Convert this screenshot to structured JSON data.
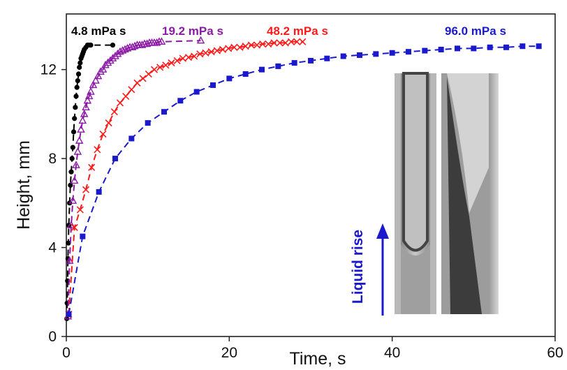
{
  "chart_data": {
    "type": "scatter",
    "title": "",
    "xlabel": "Time, s",
    "ylabel": "Height, mm",
    "xlim": [
      0,
      60
    ],
    "ylim": [
      0,
      14.5
    ],
    "xticks": [
      "0",
      "20",
      "40",
      "60"
    ],
    "yticks": [
      "0",
      "4",
      "8",
      "12"
    ],
    "grid": false,
    "legend": "none",
    "series": [
      {
        "name": "4.8 mPa s",
        "color": "#000000",
        "marker": "circle",
        "x": [
          0.05,
          0.1,
          0.15,
          0.2,
          0.25,
          0.3,
          0.4,
          0.5,
          0.6,
          0.7,
          0.8,
          0.9,
          1.0,
          1.1,
          1.2,
          1.3,
          1.4,
          1.5,
          1.6,
          1.7,
          1.8,
          1.9,
          2.0,
          2.1,
          2.2,
          2.4,
          2.6,
          2.8,
          3.0,
          5.7
        ],
        "y": [
          0.8,
          1.5,
          2.5,
          3.5,
          4.2,
          5.0,
          6.0,
          6.8,
          7.4,
          8.0,
          8.5,
          9.2,
          9.8,
          10.3,
          10.8,
          11.2,
          11.5,
          11.8,
          12.1,
          12.3,
          12.5,
          12.6,
          12.7,
          12.8,
          12.9,
          13.0,
          13.1,
          13.1,
          13.1,
          13.1
        ]
      },
      {
        "name": "19.2 mPa s",
        "color": "#8B1AA6",
        "marker": "triangle",
        "x": [
          0.2,
          0.4,
          0.6,
          0.8,
          1.0,
          1.2,
          1.4,
          1.6,
          1.8,
          2.0,
          2.2,
          2.4,
          2.6,
          2.8,
          3.0,
          3.3,
          3.6,
          3.9,
          4.2,
          4.5,
          4.8,
          5.1,
          5.4,
          5.7,
          6.0,
          6.3,
          6.6,
          6.9,
          7.2,
          7.5,
          7.8,
          8.1,
          8.4,
          8.7,
          9.0,
          9.3,
          9.6,
          9.9,
          10.2,
          10.5,
          10.8,
          11.1,
          11.4,
          11.7,
          16.5
        ],
        "y": [
          0.9,
          3.4,
          5.0,
          6.1,
          7.0,
          7.7,
          8.3,
          8.8,
          9.3,
          9.7,
          10.0,
          10.3,
          10.6,
          10.8,
          11.0,
          11.3,
          11.5,
          11.7,
          11.9,
          12.0,
          12.2,
          12.3,
          12.4,
          12.5,
          12.6,
          12.7,
          12.8,
          12.85,
          12.9,
          12.95,
          13.0,
          13.0,
          13.05,
          13.1,
          13.1,
          13.1,
          13.15,
          13.15,
          13.2,
          13.2,
          13.2,
          13.2,
          13.25,
          13.25,
          13.3
        ]
      },
      {
        "name": "48.2 mPa s",
        "color": "#FF1A1A",
        "marker": "cross",
        "x": [
          0.3,
          1.0,
          1.7,
          2.4,
          3.1,
          3.8,
          4.5,
          5.2,
          5.9,
          6.6,
          7.3,
          8.0,
          8.7,
          9.4,
          10.1,
          10.8,
          11.5,
          12.2,
          12.9,
          13.6,
          14.3,
          15.0,
          15.7,
          16.4,
          17.1,
          17.8,
          18.5,
          19.2,
          19.9,
          20.6,
          21.3,
          22.0,
          22.7,
          23.4,
          24.1,
          24.8,
          25.5,
          26.2,
          26.9,
          27.6,
          28.3,
          29.0
        ],
        "y": [
          1.0,
          4.9,
          5.7,
          6.6,
          7.6,
          8.4,
          9.1,
          9.6,
          10.1,
          10.5,
          10.8,
          11.1,
          11.4,
          11.6,
          11.8,
          12.0,
          12.1,
          12.2,
          12.3,
          12.4,
          12.5,
          12.55,
          12.6,
          12.7,
          12.75,
          12.8,
          12.85,
          12.9,
          12.95,
          13.0,
          13.0,
          13.05,
          13.1,
          13.1,
          13.15,
          13.15,
          13.2,
          13.2,
          13.2,
          13.25,
          13.25,
          13.25
        ]
      },
      {
        "name": "96.0 mPa s",
        "color": "#1A1ACC",
        "marker": "square",
        "x": [
          0.3,
          2.0,
          4.0,
          6.0,
          8.0,
          10.0,
          12.0,
          14.0,
          16.0,
          18.0,
          20.0,
          22.0,
          24.0,
          26.0,
          28.0,
          30.0,
          32.0,
          34.0,
          36.0,
          38.0,
          40.0,
          42.0,
          44.0,
          46.0,
          48.0,
          50.0,
          52.0,
          54.0,
          56.0,
          58.0
        ],
        "y": [
          1.0,
          4.5,
          6.5,
          8.0,
          8.9,
          9.6,
          10.1,
          10.6,
          11.0,
          11.3,
          11.6,
          11.8,
          12.0,
          12.15,
          12.3,
          12.4,
          12.5,
          12.6,
          12.65,
          12.7,
          12.75,
          12.8,
          12.85,
          12.9,
          12.95,
          12.95,
          13.0,
          13.0,
          13.05,
          13.05
        ]
      }
    ],
    "annotations": {
      "liquid_rise": "Liquid rise"
    }
  }
}
